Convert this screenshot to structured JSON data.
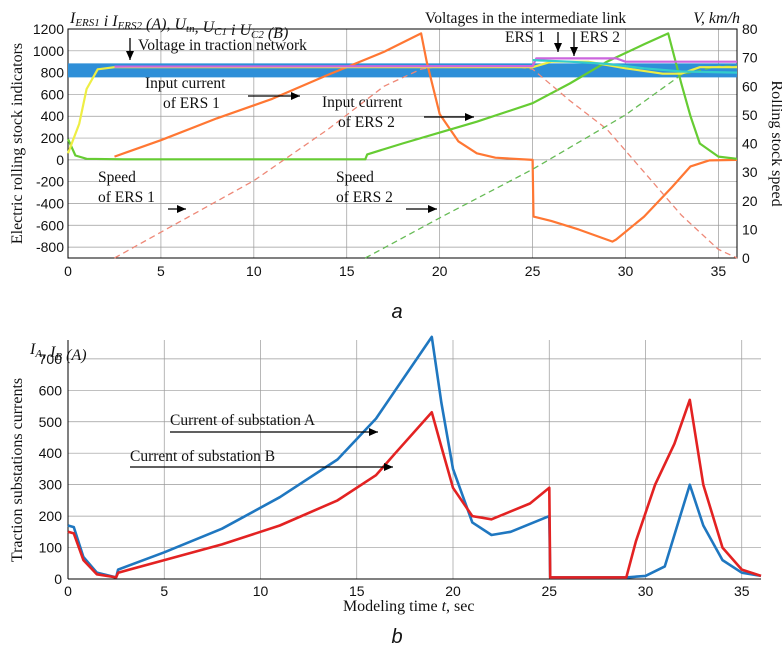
{
  "chart_data": [
    {
      "type": "line",
      "panel_caption": "a",
      "left_axis_label": "Electric rolling stock indicators",
      "left_header": "I_ERS1 i I_ERS2 (A), U_tn, U_C1 i U_C2 (B)",
      "right_header": "V, km/h",
      "right_axis_label": "Rolling stock speed",
      "xlim": [
        0,
        36
      ],
      "ylim": [
        -900,
        1200
      ],
      "y2lim": [
        0,
        80
      ],
      "x_ticks": [
        0,
        5,
        10,
        15,
        20,
        25,
        30,
        35
      ],
      "y_ticks": [
        -800,
        -600,
        -400,
        -200,
        0,
        200,
        400,
        600,
        800,
        1000,
        1200
      ],
      "y2_ticks": [
        0,
        10,
        20,
        30,
        40,
        50,
        60,
        70,
        80
      ],
      "grid": true,
      "annotations": [
        {
          "text": "Voltage in traction network"
        },
        {
          "text": "Voltages in the intermediate link"
        },
        {
          "text": "ERS 1"
        },
        {
          "text": "ERS 2"
        },
        {
          "text": "Input current",
          "text2": "of ERS 1"
        },
        {
          "text": "Input current",
          "text2": "of ERS 2"
        },
        {
          "text": "Speed",
          "text2": "of ERS 1"
        },
        {
          "text": "Speed",
          "text2": "of ERS 2"
        }
      ],
      "series": [
        {
          "color": "#2e8fd8",
          "axis": "left",
          "points": [
            [
              0,
              820
            ],
            [
              36,
              820
            ]
          ]
        },
        {
          "color": "#ff7733",
          "axis": "left",
          "points": [
            [
              2.5,
              30
            ],
            [
              5,
              180
            ],
            [
              8,
              380
            ],
            [
              11,
              560
            ],
            [
              14,
              780
            ],
            [
              17,
              990
            ],
            [
              19,
              1160
            ],
            [
              19.3,
              900
            ],
            [
              20,
              420
            ],
            [
              21,
              170
            ],
            [
              22,
              60
            ],
            [
              23,
              20
            ],
            [
              25,
              0
            ],
            [
              25.05,
              -520
            ],
            [
              26,
              -560
            ],
            [
              27.5,
              -640
            ],
            [
              29.3,
              -750
            ],
            [
              29.5,
              -730
            ],
            [
              31,
              -520
            ],
            [
              32.5,
              -250
            ],
            [
              33.5,
              -60
            ],
            [
              34.5,
              -5
            ],
            [
              36,
              0
            ]
          ]
        },
        {
          "color": "#66cc33",
          "axis": "left",
          "points": [
            [
              0,
              190
            ],
            [
              0.4,
              40
            ],
            [
              1,
              10
            ],
            [
              3,
              5
            ],
            [
              16,
              5
            ],
            [
              16.1,
              50
            ],
            [
              18,
              150
            ],
            [
              20,
              250
            ],
            [
              22,
              350
            ],
            [
              25,
              520
            ],
            [
              27,
              700
            ],
            [
              29,
              900
            ],
            [
              31,
              1060
            ],
            [
              32.3,
              1160
            ],
            [
              33,
              700
            ],
            [
              33.5,
              400
            ],
            [
              34,
              150
            ],
            [
              35,
              30
            ],
            [
              36,
              10
            ]
          ]
        },
        {
          "color": "#ee8877",
          "axis": "right",
          "dashed": true,
          "points": [
            [
              2.5,
              0
            ],
            [
              5,
              9
            ],
            [
              10,
              27
            ],
            [
              14,
              45
            ],
            [
              17,
              60
            ],
            [
              19,
              66
            ],
            [
              20,
              67
            ],
            [
              24,
              67
            ],
            [
              25,
              66
            ],
            [
              27,
              55
            ],
            [
              29,
              45
            ],
            [
              31,
              30
            ],
            [
              33,
              15
            ],
            [
              35,
              3
            ],
            [
              36,
              0
            ]
          ]
        },
        {
          "color": "#66bb55",
          "axis": "right",
          "dashed": true,
          "points": [
            [
              16,
              0
            ],
            [
              20,
              14
            ],
            [
              25,
              31
            ],
            [
              30,
              50
            ],
            [
              33,
              64
            ],
            [
              35,
              67
            ],
            [
              36,
              67
            ]
          ]
        },
        {
          "color": "#eeee44",
          "axis": "left",
          "points": [
            [
              0,
              60
            ],
            [
              0.6,
              330
            ],
            [
              1,
              650
            ],
            [
              1.6,
              830
            ],
            [
              2.5,
              850
            ],
            [
              19,
              850
            ],
            [
              25,
              850
            ],
            [
              26,
              900
            ],
            [
              28,
              900
            ],
            [
              30,
              840
            ],
            [
              32,
              790
            ],
            [
              33,
              790
            ],
            [
              34,
              850
            ],
            [
              36,
              850
            ]
          ]
        },
        {
          "color": "#cc66dd",
          "axis": "left",
          "points": [
            [
              2.5,
              855
            ],
            [
              25,
              860
            ],
            [
              25.2,
              930
            ],
            [
              28,
              930
            ],
            [
              29.5,
              930
            ],
            [
              30,
              900
            ],
            [
              36,
              900
            ]
          ]
        },
        {
          "color": "#33cccc",
          "axis": "left",
          "points": [
            [
              25,
              915
            ],
            [
              27,
              900
            ],
            [
              29,
              880
            ],
            [
              31,
              840
            ],
            [
              33,
              810
            ],
            [
              36,
              800
            ]
          ]
        }
      ]
    },
    {
      "type": "line",
      "panel_caption": "b",
      "left_axis_label": "Traction substations currents",
      "left_header": "I_A, I_B (A)",
      "xlabel": "Modeling time t, sec",
      "xlim": [
        0,
        36
      ],
      "ylim": [
        0,
        760
      ],
      "x_ticks": [
        0,
        5,
        10,
        15,
        20,
        25,
        30,
        35
      ],
      "y_ticks": [
        0,
        100,
        200,
        300,
        400,
        500,
        600,
        700
      ],
      "grid": true,
      "annotations": [
        {
          "text": "Current of substation A"
        },
        {
          "text": "Current of substation B"
        }
      ],
      "series": [
        {
          "name": "Current of substation A",
          "color": "#1f77c0",
          "points": [
            [
              0,
              170
            ],
            [
              0.3,
              165
            ],
            [
              0.8,
              70
            ],
            [
              1.5,
              20
            ],
            [
              2.5,
              5
            ],
            [
              2.6,
              30
            ],
            [
              5,
              85
            ],
            [
              8,
              160
            ],
            [
              11,
              260
            ],
            [
              14,
              380
            ],
            [
              16,
              510
            ],
            [
              17,
              600
            ],
            [
              18.9,
              770
            ],
            [
              19.4,
              560
            ],
            [
              20,
              350
            ],
            [
              21,
              180
            ],
            [
              22,
              140
            ],
            [
              23,
              150
            ],
            [
              25,
              200
            ],
            [
              25.05,
              5
            ],
            [
              29,
              5
            ],
            [
              30,
              10
            ],
            [
              31,
              40
            ],
            [
              32.3,
              300
            ],
            [
              33,
              170
            ],
            [
              34,
              60
            ],
            [
              35,
              20
            ],
            [
              36,
              10
            ]
          ]
        },
        {
          "name": "Current of substation B",
          "color": "#e32222",
          "points": [
            [
              0,
              150
            ],
            [
              0.3,
              145
            ],
            [
              0.8,
              60
            ],
            [
              1.5,
              15
            ],
            [
              2.5,
              5
            ],
            [
              2.6,
              20
            ],
            [
              5,
              60
            ],
            [
              8,
              110
            ],
            [
              11,
              170
            ],
            [
              14,
              250
            ],
            [
              16,
              330
            ],
            [
              17,
              400
            ],
            [
              18.9,
              530
            ],
            [
              19.4,
              420
            ],
            [
              20,
              290
            ],
            [
              21,
              200
            ],
            [
              22,
              190
            ],
            [
              24,
              240
            ],
            [
              25,
              290
            ],
            [
              25.05,
              5
            ],
            [
              29,
              5
            ],
            [
              29.5,
              120
            ],
            [
              30.5,
              300
            ],
            [
              31.5,
              430
            ],
            [
              32.3,
              570
            ],
            [
              33,
              300
            ],
            [
              34,
              100
            ],
            [
              35,
              30
            ],
            [
              36,
              10
            ]
          ]
        }
      ]
    }
  ]
}
